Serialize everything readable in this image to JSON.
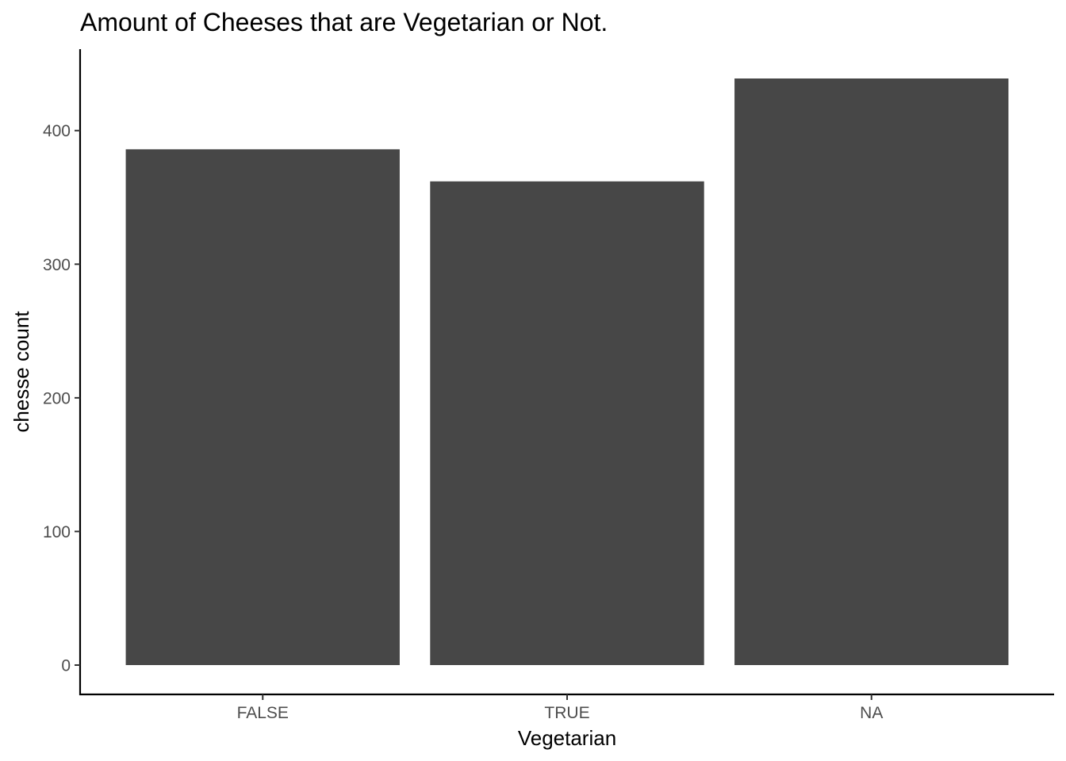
{
  "chart_data": {
    "type": "bar",
    "title": "Amount of Cheeses that are Vegetarian or Not.",
    "xlabel": "Vegetarian",
    "ylabel": "chesse count",
    "categories": [
      "FALSE",
      "TRUE",
      "NA"
    ],
    "values": [
      386,
      362,
      439
    ],
    "y_ticks": [
      0,
      100,
      200,
      300,
      400
    ],
    "ylim": [
      -21.95,
      460.95
    ],
    "bar_color": "#474747",
    "grid": false,
    "legend": "none"
  }
}
